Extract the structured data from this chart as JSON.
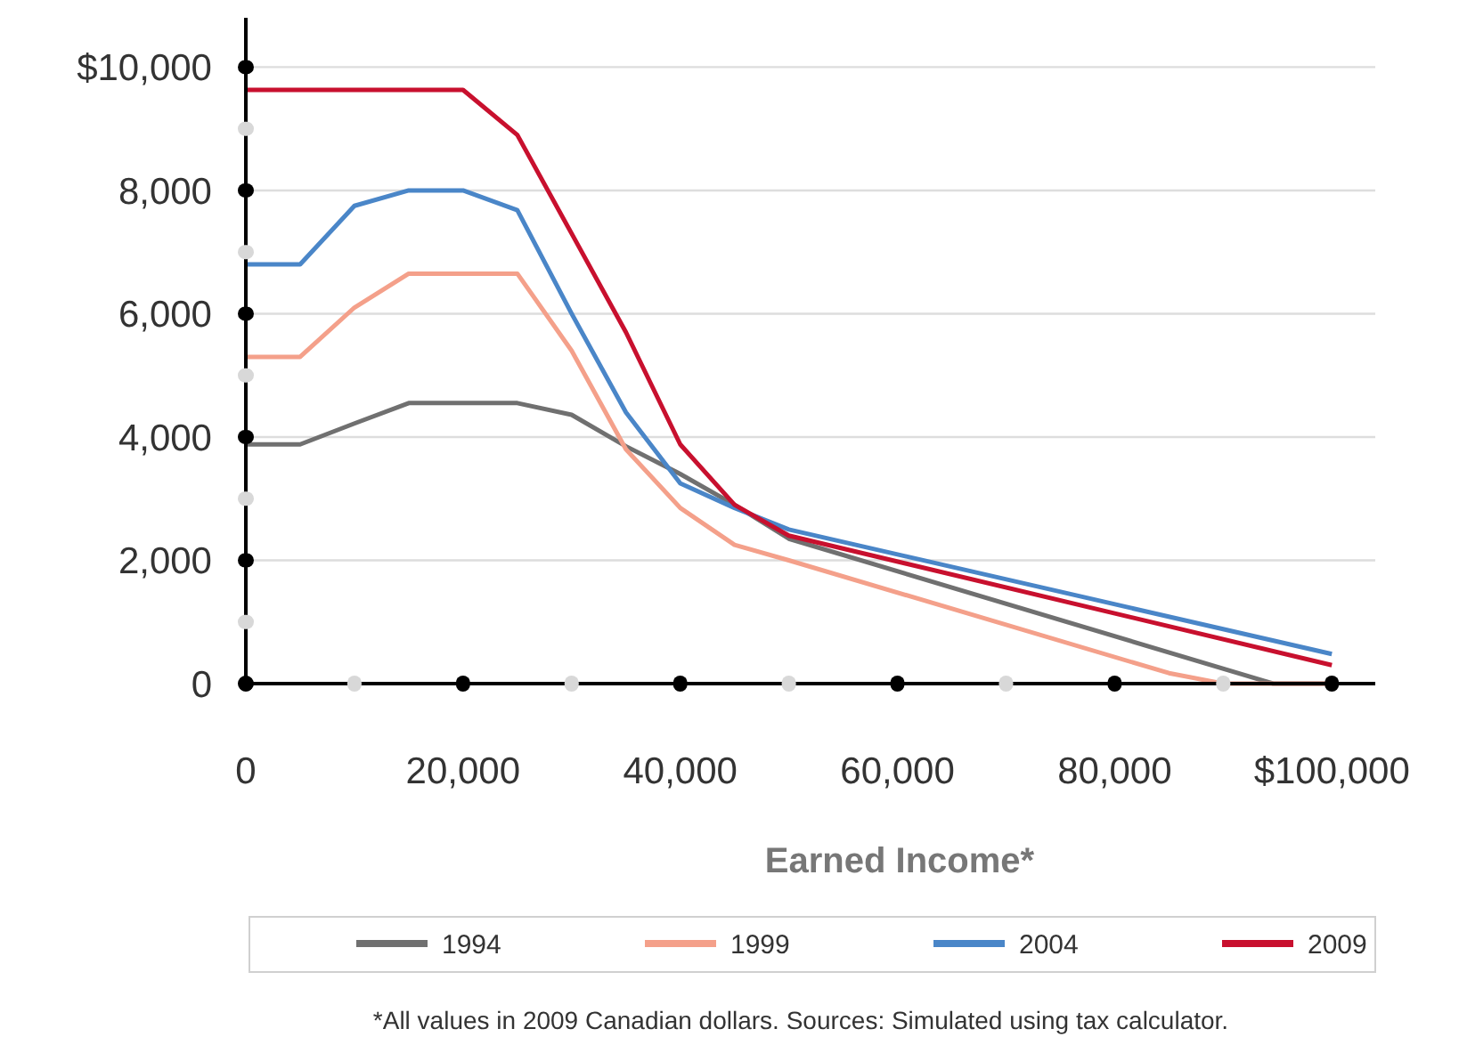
{
  "chart_data": {
    "type": "line",
    "xlabel": "Earned Income*",
    "xlim": [
      0,
      104000
    ],
    "ylim": [
      0,
      10800
    ],
    "xticks": [
      0,
      {
        "value": 10000,
        "label": null
      },
      {
        "value": 20000,
        "label": "20,000"
      },
      {
        "value": 30000,
        "label": null
      },
      {
        "value": 40000,
        "label": "40,000"
      },
      {
        "value": 50000,
        "label": null
      },
      {
        "value": 60000,
        "label": "60,000"
      },
      {
        "value": 70000,
        "label": null
      },
      {
        "value": 80000,
        "label": "80,000"
      },
      {
        "value": 90000,
        "label": null
      },
      {
        "value": 100000,
        "label": "$100,000"
      }
    ],
    "yticks": [
      0,
      {
        "value": 1000,
        "label": null
      },
      {
        "value": 2000,
        "label": "2,000"
      },
      {
        "value": 3000,
        "label": null
      },
      {
        "value": 4000,
        "label": "4,000"
      },
      {
        "value": 5000,
        "label": null
      },
      {
        "value": 6000,
        "label": "6,000"
      },
      {
        "value": 7000,
        "label": null
      },
      {
        "value": 8000,
        "label": "8,000"
      },
      {
        "value": 9000,
        "label": null
      },
      {
        "value": 10000,
        "label": "$10,000"
      }
    ],
    "grid": "y",
    "legend": "bottom",
    "marker": "none",
    "line_style": "solid",
    "series": [
      {
        "name": "1994",
        "color": "#707070",
        "x": [
          0,
          5000,
          10000,
          15000,
          25000,
          30000,
          35000,
          40000,
          45000,
          50000,
          94600,
          100000
        ],
        "values": [
          3880,
          3880,
          4220,
          4550,
          4550,
          4360,
          3850,
          3400,
          2900,
          2350,
          0,
          0
        ]
      },
      {
        "name": "1999",
        "color": "#f4a08a",
        "x": [
          0,
          5000,
          10000,
          15000,
          25000,
          30000,
          35000,
          40000,
          45000,
          50000,
          85000,
          90000,
          100000
        ],
        "values": [
          5300,
          5300,
          6100,
          6650,
          6650,
          5400,
          3800,
          2850,
          2250,
          2000,
          170,
          0,
          0
        ]
      },
      {
        "name": "2004",
        "color": "#4a86c8",
        "x": [
          0,
          5000,
          10000,
          15000,
          20000,
          25000,
          30000,
          35000,
          40000,
          45000,
          50000,
          100000
        ],
        "values": [
          6800,
          6800,
          7750,
          8000,
          8000,
          7680,
          6000,
          4400,
          3250,
          2850,
          2500,
          480
        ]
      },
      {
        "name": "2009",
        "color": "#c8102e",
        "x": [
          0,
          20000,
          25000,
          30000,
          35000,
          40000,
          45000,
          50000,
          100000
        ],
        "values": [
          9630,
          9630,
          8900,
          7300,
          5700,
          3880,
          2900,
          2400,
          300
        ]
      }
    ],
    "annotations": [
      "*All values in 2009 Canadian dollars. Sources: Simulated using tax calculator."
    ]
  }
}
